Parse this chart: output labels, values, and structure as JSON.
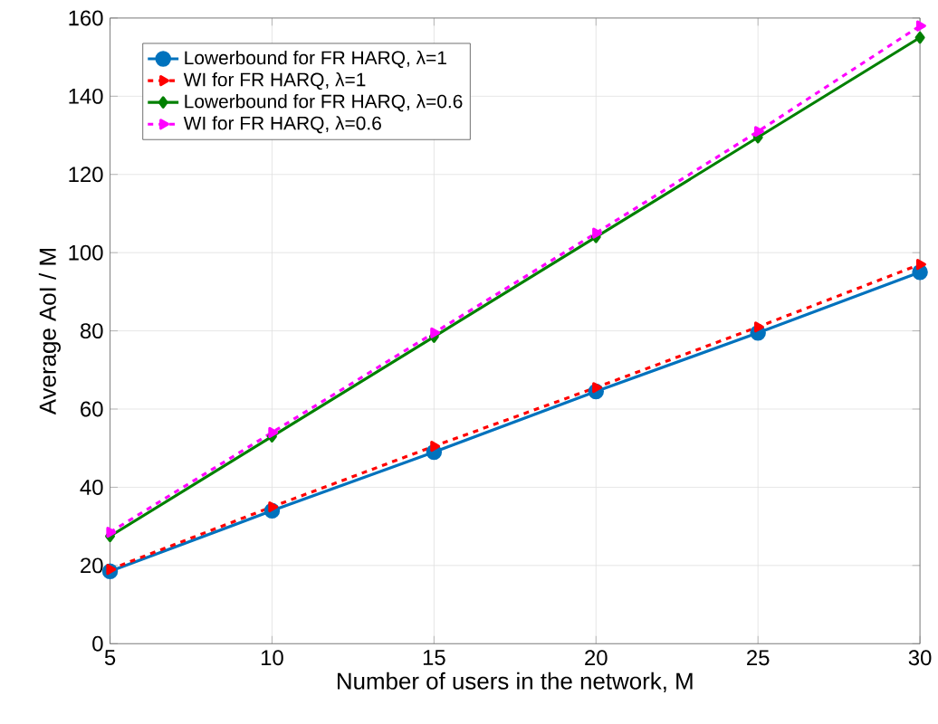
{
  "chart_data": {
    "type": "line",
    "xlabel": "Number of users in the network, M",
    "ylabel": "Average AoI / M",
    "x": [
      5,
      10,
      15,
      20,
      25,
      30
    ],
    "xlim": [
      5,
      30
    ],
    "xticks": [
      5,
      10,
      15,
      20,
      25,
      30
    ],
    "ylim": [
      0,
      160
    ],
    "yticks": [
      0,
      20,
      40,
      60,
      80,
      100,
      120,
      140,
      160
    ],
    "grid": true,
    "legend": "top left",
    "series": [
      {
        "name": "Lowerbound for  FR HARQ,  λ=1",
        "color": "#0072bd",
        "marker": "circle",
        "line_style": "solid",
        "values": [
          18.5,
          34,
          49,
          64.5,
          79.5,
          95
        ]
      },
      {
        "name": "WI for FR HARQ,  λ=1",
        "color": "#ff0000",
        "marker": "triangle",
        "line_style": "dashed",
        "values": [
          19,
          35,
          50.5,
          65.5,
          81,
          97
        ]
      },
      {
        "name": "Lowerbound for  FR HARQ,  λ=0.6",
        "color": "#008000",
        "marker": "diamond",
        "line_style": "solid",
        "values": [
          27.5,
          53,
          78.5,
          104,
          129.5,
          155
        ]
      },
      {
        "name": "WI for FR HARQ,  λ=0.6",
        "color": "#ff00ff",
        "marker": "triangle",
        "line_style": "dashed",
        "values": [
          28.5,
          54,
          79.5,
          105,
          131,
          158
        ]
      }
    ]
  }
}
